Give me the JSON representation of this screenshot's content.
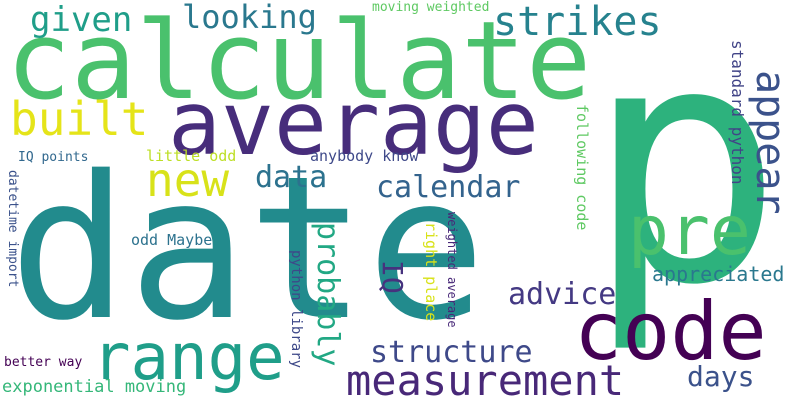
{
  "words": [
    {
      "id": "date",
      "text": "date",
      "color": "#228b8d"
    },
    {
      "id": "p",
      "text": "p",
      "color": "#2db27d"
    },
    {
      "id": "calculate",
      "text": "calculate",
      "color": "#4ac16d"
    },
    {
      "id": "average",
      "text": "average",
      "color": "#472d7b"
    },
    {
      "id": "code",
      "text": "code",
      "color": "#440154"
    },
    {
      "id": "range",
      "text": "range",
      "color": "#1f9e89"
    },
    {
      "id": "measurement",
      "text": "measurement",
      "color": "#482878"
    },
    {
      "id": "pre",
      "text": "pre",
      "color": "#4ac16d"
    },
    {
      "id": "appear",
      "text": "appear",
      "color": "#3b528b"
    },
    {
      "id": "strikes",
      "text": "strikes",
      "color": "#26828e"
    },
    {
      "id": "new",
      "text": "new",
      "color": "#d8e219"
    },
    {
      "id": "built",
      "text": "built",
      "color": "#e5e419"
    },
    {
      "id": "given",
      "text": "given",
      "color": "#1f9e89"
    },
    {
      "id": "looking",
      "text": "looking",
      "color": "#2a788e"
    },
    {
      "id": "data",
      "text": "data",
      "color": "#2c728e"
    },
    {
      "id": "calendar",
      "text": "calendar",
      "color": "#33638d"
    },
    {
      "id": "probably",
      "text": "probably",
      "color": "#22a884"
    },
    {
      "id": "structure",
      "text": "structure",
      "color": "#3e4989"
    },
    {
      "id": "advice",
      "text": "advice",
      "color": "#443983"
    },
    {
      "id": "days",
      "text": "days",
      "color": "#3b528b"
    },
    {
      "id": "IQ",
      "text": "IQ",
      "color": "#46327e"
    },
    {
      "id": "appreciated",
      "text": "appreciated",
      "color": "#2a788e"
    },
    {
      "id": "standard_python",
      "text": "standard python",
      "color": "#414487"
    },
    {
      "id": "following_code",
      "text": "following code",
      "color": "#5ec962"
    },
    {
      "id": "anybody_know",
      "text": "anybody know",
      "color": "#3e4989"
    },
    {
      "id": "little_odd",
      "text": "little odd",
      "color": "#bddf26"
    },
    {
      "id": "odd_maybe",
      "text": "odd Maybe",
      "color": "#2c728e"
    },
    {
      "id": "moving_weighted",
      "text": "moving weighted",
      "color": "#5ec962"
    },
    {
      "id": "iq_points",
      "text": "IQ points",
      "color": "#31688e"
    },
    {
      "id": "datetime_import",
      "text": "datetime import",
      "color": "#3b528b"
    },
    {
      "id": "python_library",
      "text": "python library",
      "color": "#3e4989"
    },
    {
      "id": "right_place",
      "text": "right place",
      "color": "#d8e219"
    },
    {
      "id": "weighted_average",
      "text": "weighted average",
      "color": "#482878"
    },
    {
      "id": "better_way",
      "text": "better way",
      "color": "#440154"
    },
    {
      "id": "exponential_moving",
      "text": "exponential moving",
      "color": "#35b779"
    }
  ]
}
